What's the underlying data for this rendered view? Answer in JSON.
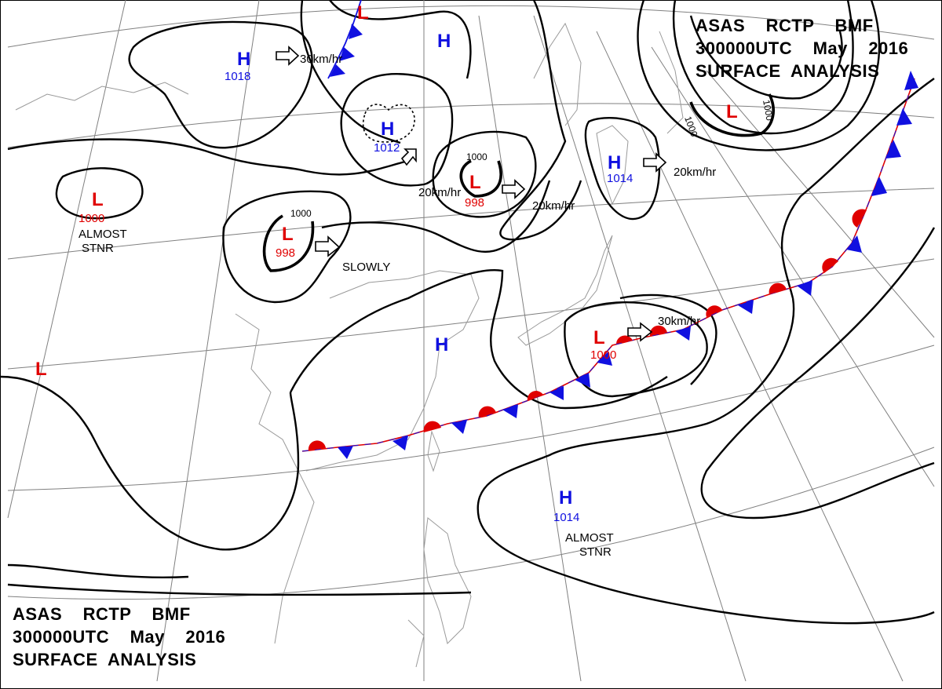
{
  "header_top": {
    "line1": "ASAS    RCTP    BMF",
    "line2": "300000UTC    May    2016",
    "line3": "SURFACE  ANALYSIS"
  },
  "header_bottom": {
    "line1": "ASAS    RCTP    BMF",
    "line2": "300000UTC    May    2016",
    "line3": "SURFACE  ANALYSIS"
  },
  "colors": {
    "high": "#1010e0",
    "low": "#e00000",
    "isobar": "#000000",
    "grid": "#808080",
    "coast": "#9a9a9a"
  },
  "pressure_centers": [
    {
      "type": "H",
      "value": "1018"
    },
    {
      "type": "H",
      "value": ""
    },
    {
      "type": "H",
      "value": "1012"
    },
    {
      "type": "L",
      "value": "998"
    },
    {
      "type": "H",
      "value": "1014"
    },
    {
      "type": "L",
      "value": "1000"
    },
    {
      "type": "L",
      "value": "998"
    },
    {
      "type": "L",
      "value": ""
    },
    {
      "type": "L",
      "value": ""
    },
    {
      "type": "H",
      "value": ""
    },
    {
      "type": "L",
      "value": "1000"
    },
    {
      "type": "H",
      "value": "1014"
    },
    {
      "type": "L",
      "value": ""
    }
  ],
  "movement_labels": [
    "30km/hr",
    "20km/hr",
    "20km/hr",
    "20km/hr",
    "SLOWLY",
    "30km/hr"
  ],
  "notes": [
    {
      "line1": "ALMOST",
      "line2": "STNR"
    },
    {
      "line1": "ALMOST",
      "line2": "STNR"
    }
  ],
  "isobar_labels": [
    "1000",
    "1000",
    "1000",
    "1000"
  ]
}
